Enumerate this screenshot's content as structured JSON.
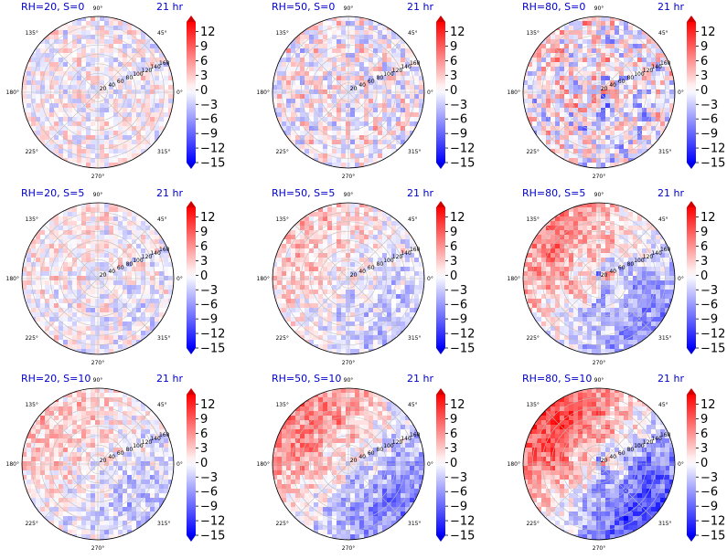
{
  "figure": {
    "time_label": "21 hr",
    "colors": {
      "title": "#0000cc",
      "cmap_low": "#0000ff",
      "cmap_mid": "#ffffff",
      "cmap_high": "#ff0000"
    }
  },
  "chart_data": {
    "type": "heatmap",
    "projection": "polar",
    "layout": {
      "rows": 3,
      "cols": 3
    },
    "angular_ticks": [
      "0°",
      "45°",
      "90°",
      "135°",
      "180°",
      "225°",
      "270°",
      "315°"
    ],
    "radial_ticks": [
      20,
      40,
      60,
      80,
      100,
      120,
      140,
      160
    ],
    "radial_label_angle_deg": 22.5,
    "colorbar": {
      "ticks": [
        12,
        9,
        6,
        3,
        0,
        -3,
        -6,
        -9,
        -12,
        -15
      ],
      "range": [
        -15,
        14
      ],
      "extend": "both",
      "cmap": "bwr"
    },
    "panels": [
      {
        "title": "RH=20, S=0",
        "time": "21 hr",
        "pattern": {
          "amp": 3,
          "dipole": 0,
          "core": 0,
          "spiral": 0
        }
      },
      {
        "title": "RH=50, S=0",
        "time": "21 hr",
        "pattern": {
          "amp": 4,
          "dipole": 0,
          "core": 2,
          "spiral": 1
        }
      },
      {
        "title": "RH=80, S=0",
        "time": "21 hr",
        "pattern": {
          "amp": 5,
          "dipole": 1,
          "core": 8,
          "spiral": 6
        }
      },
      {
        "title": "RH=20, S=5",
        "time": "21 hr",
        "pattern": {
          "amp": 3,
          "dipole": 1,
          "core": 0,
          "spiral": 0
        }
      },
      {
        "title": "RH=50, S=5",
        "time": "21 hr",
        "pattern": {
          "amp": 3,
          "dipole": 3,
          "core": 3,
          "spiral": 1
        }
      },
      {
        "title": "RH=80, S=5",
        "time": "21 hr",
        "pattern": {
          "amp": 3,
          "dipole": 6,
          "core": 8,
          "spiral": 4
        }
      },
      {
        "title": "RH=20, S=10",
        "time": "21 hr",
        "pattern": {
          "amp": 3,
          "dipole": 3,
          "core": 0,
          "spiral": 0
        }
      },
      {
        "title": "RH=50, S=10",
        "time": "21 hr",
        "pattern": {
          "amp": 3,
          "dipole": 7,
          "core": 6,
          "spiral": 1
        }
      },
      {
        "title": "RH=80, S=10",
        "time": "21 hr",
        "pattern": {
          "amp": 3,
          "dipole": 10,
          "core": 10,
          "spiral": 3
        }
      }
    ]
  }
}
